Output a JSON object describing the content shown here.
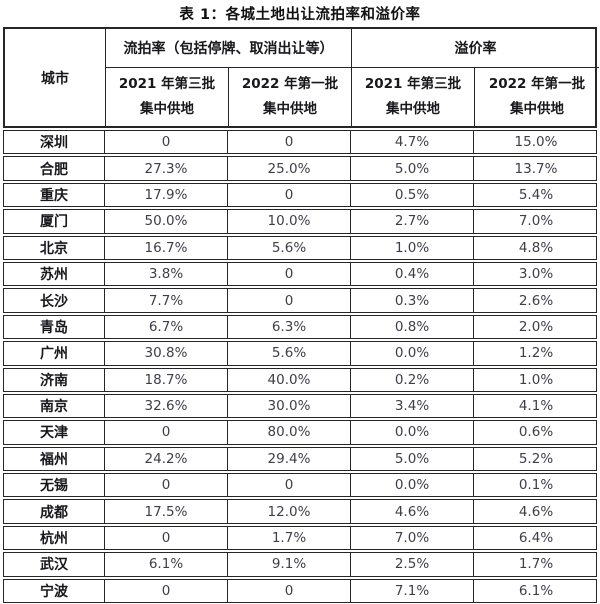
{
  "colors": {
    "border": "#262626",
    "heading_text": "#17171c",
    "value_text": "#3e3e4a",
    "background": "#ffffff"
  },
  "chart_data": {
    "type": "table",
    "title": "表 1：各城土地出让流拍率和溢价率",
    "columns": {
      "city": "城市",
      "groups": [
        {
          "label": "流拍率（包括停牌、取消出让等）"
        },
        {
          "label": "溢价率"
        }
      ],
      "subheaders": [
        {
          "line1": "2021 年第三批",
          "line2": "集中供地"
        },
        {
          "line1": "2022 年第一批",
          "line2": "集中供地"
        },
        {
          "line1": "2021 年第三批",
          "line2": "集中供地"
        },
        {
          "line1": "2022 年第一批",
          "line2": "集中供地"
        }
      ]
    },
    "rows": [
      {
        "city": "深圳",
        "values": [
          "0",
          "0",
          "4.7%",
          "15.0%"
        ]
      },
      {
        "city": "合肥",
        "values": [
          "27.3%",
          "25.0%",
          "5.0%",
          "13.7%"
        ]
      },
      {
        "city": "重庆",
        "values": [
          "17.9%",
          "0",
          "0.5%",
          "5.4%"
        ]
      },
      {
        "city": "厦门",
        "values": [
          "50.0%",
          "10.0%",
          "2.7%",
          "7.0%"
        ]
      },
      {
        "city": "北京",
        "values": [
          "16.7%",
          "5.6%",
          "1.0%",
          "4.8%"
        ]
      },
      {
        "city": "苏州",
        "values": [
          "3.8%",
          "0",
          "0.4%",
          "3.0%"
        ]
      },
      {
        "city": "长沙",
        "values": [
          "7.7%",
          "0",
          "0.3%",
          "2.6%"
        ]
      },
      {
        "city": "青岛",
        "values": [
          "6.7%",
          "6.3%",
          "0.8%",
          "2.0%"
        ]
      },
      {
        "city": "广州",
        "values": [
          "30.8%",
          "5.6%",
          "0.0%",
          "1.2%"
        ]
      },
      {
        "city": "济南",
        "values": [
          "18.7%",
          "40.0%",
          "0.2%",
          "1.0%"
        ]
      },
      {
        "city": "南京",
        "values": [
          "32.6%",
          "30.0%",
          "3.4%",
          "4.1%"
        ]
      },
      {
        "city": "天津",
        "values": [
          "0",
          "80.0%",
          "0.0%",
          "0.6%"
        ]
      },
      {
        "city": "福州",
        "values": [
          "24.2%",
          "29.4%",
          "5.0%",
          "5.2%"
        ]
      },
      {
        "city": "无锡",
        "values": [
          "0",
          "0",
          "0.0%",
          "0.1%"
        ]
      },
      {
        "city": "成都",
        "values": [
          "17.5%",
          "12.0%",
          "4.6%",
          "4.6%"
        ]
      },
      {
        "city": "杭州",
        "values": [
          "0",
          "1.7%",
          "7.0%",
          "6.4%"
        ]
      },
      {
        "city": "武汉",
        "values": [
          "6.1%",
          "9.1%",
          "2.5%",
          "1.7%"
        ]
      },
      {
        "city": "宁波",
        "values": [
          "0",
          "0",
          "7.1%",
          "6.1%"
        ]
      }
    ]
  }
}
